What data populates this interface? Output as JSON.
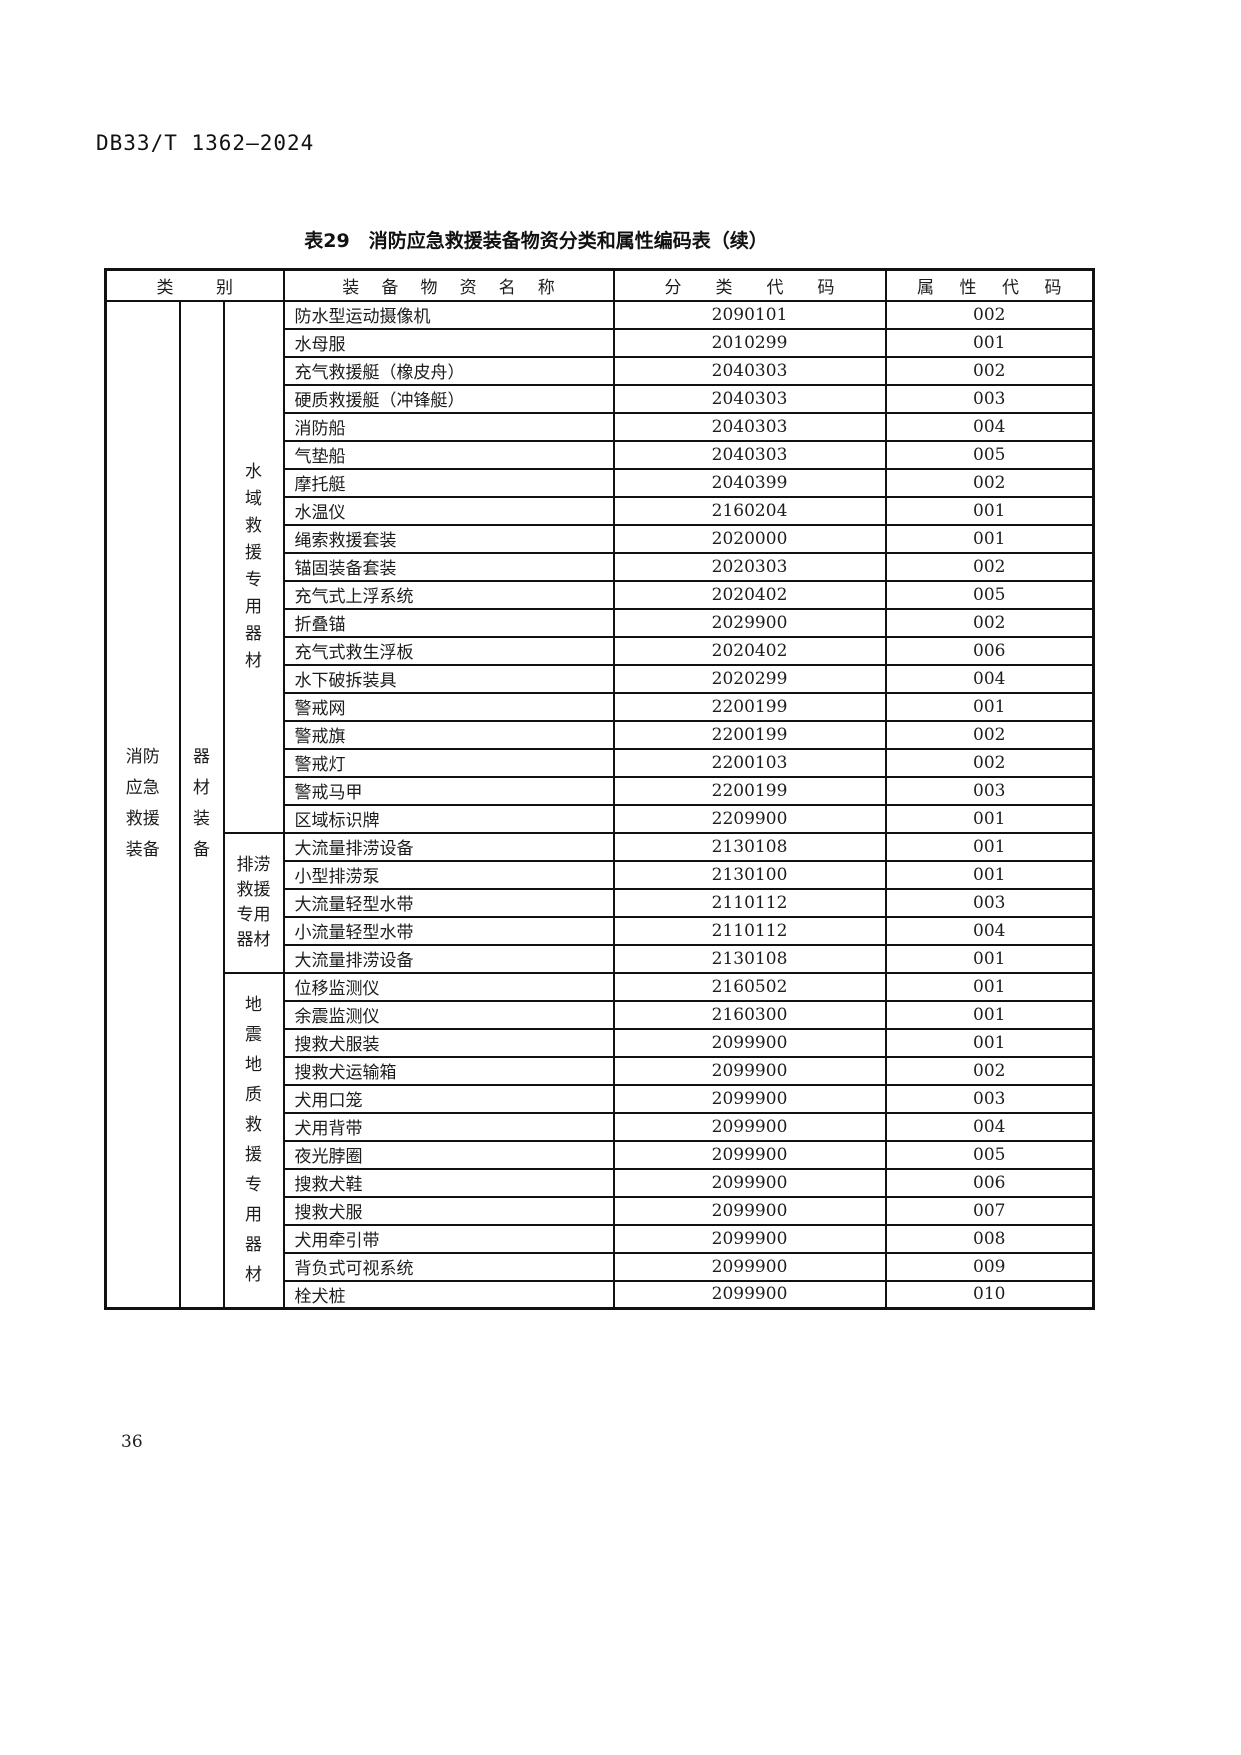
{
  "page": {
    "doc_number": "DB33/T 1362—2024",
    "page_number": "36"
  },
  "table": {
    "title": "表29　消防应急救援装备物资分类和属性编码表（续）",
    "columns": [
      "类别",
      "装备物资名称",
      "分类代码",
      "属性代码"
    ],
    "category_root": {
      "label": "消防应急救援装备",
      "lines": [
        "消防",
        "应急",
        "救援",
        "装备"
      ]
    },
    "category_group": {
      "label": "器材装备",
      "lines": [
        "器",
        "材",
        "装",
        "备"
      ]
    },
    "sections": [
      {
        "label": "水域救援专用器材",
        "lines": [
          "水",
          "域",
          "救",
          "援",
          "专",
          "用",
          "器",
          "材"
        ],
        "rows": [
          {
            "name": "防水型运动摄像机",
            "class_code": "2090101",
            "attr_code": "002"
          },
          {
            "name": "水母服",
            "class_code": "2010299",
            "attr_code": "001"
          },
          {
            "name": "充气救援艇（橡皮舟）",
            "class_code": "2040303",
            "attr_code": "002"
          },
          {
            "name": "硬质救援艇（冲锋艇）",
            "class_code": "2040303",
            "attr_code": "003"
          },
          {
            "name": "消防船",
            "class_code": "2040303",
            "attr_code": "004"
          },
          {
            "name": "气垫船",
            "class_code": "2040303",
            "attr_code": "005"
          },
          {
            "name": "摩托艇",
            "class_code": "2040399",
            "attr_code": "002"
          },
          {
            "name": "水温仪",
            "class_code": "2160204",
            "attr_code": "001"
          },
          {
            "name": "绳索救援套装",
            "class_code": "2020000",
            "attr_code": "001"
          },
          {
            "name": "锚固装备套装",
            "class_code": "2020303",
            "attr_code": "002"
          },
          {
            "name": "充气式上浮系统",
            "class_code": "2020402",
            "attr_code": "005"
          },
          {
            "name": "折叠锚",
            "class_code": "2029900",
            "attr_code": "002"
          },
          {
            "name": "充气式救生浮板",
            "class_code": "2020402",
            "attr_code": "006"
          },
          {
            "name": "水下破拆装具",
            "class_code": "2020299",
            "attr_code": "004"
          },
          {
            "name": "警戒网",
            "class_code": "2200199",
            "attr_code": "001"
          },
          {
            "name": "警戒旗",
            "class_code": "2200199",
            "attr_code": "002"
          },
          {
            "name": "警戒灯",
            "class_code": "2200103",
            "attr_code": "002"
          },
          {
            "name": "警戒马甲",
            "class_code": "2200199",
            "attr_code": "003"
          },
          {
            "name": "区域标识牌",
            "class_code": "2209900",
            "attr_code": "001"
          }
        ]
      },
      {
        "label": "排涝救援专用器材",
        "lines": [
          "排涝",
          "救援",
          "专用",
          "器材"
        ],
        "rows": [
          {
            "name": "大流量排涝设备",
            "class_code": "2130108",
            "attr_code": "001"
          },
          {
            "name": "小型排涝泵",
            "class_code": "2130100",
            "attr_code": "001"
          },
          {
            "name": "大流量轻型水带",
            "class_code": "2110112",
            "attr_code": "003"
          },
          {
            "name": "小流量轻型水带",
            "class_code": "2110112",
            "attr_code": "004"
          },
          {
            "name": "大流量排涝设备",
            "class_code": "2130108",
            "attr_code": "001"
          }
        ]
      },
      {
        "label": "地震地质救援专用器材",
        "lines": [
          "地",
          "震",
          "地",
          "质",
          "救",
          "援",
          "专",
          "用",
          "器",
          "材"
        ],
        "rows": [
          {
            "name": "位移监测仪",
            "class_code": "2160502",
            "attr_code": "001"
          },
          {
            "name": "余震监测仪",
            "class_code": "2160300",
            "attr_code": "001"
          },
          {
            "name": "搜救犬服装",
            "class_code": "2099900",
            "attr_code": "001"
          },
          {
            "name": "搜救犬运输箱",
            "class_code": "2099900",
            "attr_code": "002"
          },
          {
            "name": "犬用口笼",
            "class_code": "2099900",
            "attr_code": "003"
          },
          {
            "name": "犬用背带",
            "class_code": "2099900",
            "attr_code": "004"
          },
          {
            "name": "夜光脖圈",
            "class_code": "2099900",
            "attr_code": "005"
          },
          {
            "name": "搜救犬鞋",
            "class_code": "2099900",
            "attr_code": "006"
          },
          {
            "name": "搜救犬服",
            "class_code": "2099900",
            "attr_code": "007"
          },
          {
            "name": "犬用牵引带",
            "class_code": "2099900",
            "attr_code": "008"
          },
          {
            "name": "背负式可视系统",
            "class_code": "2099900",
            "attr_code": "009"
          },
          {
            "name": "栓犬桩",
            "class_code": "2099900",
            "attr_code": "010"
          }
        ]
      }
    ]
  }
}
